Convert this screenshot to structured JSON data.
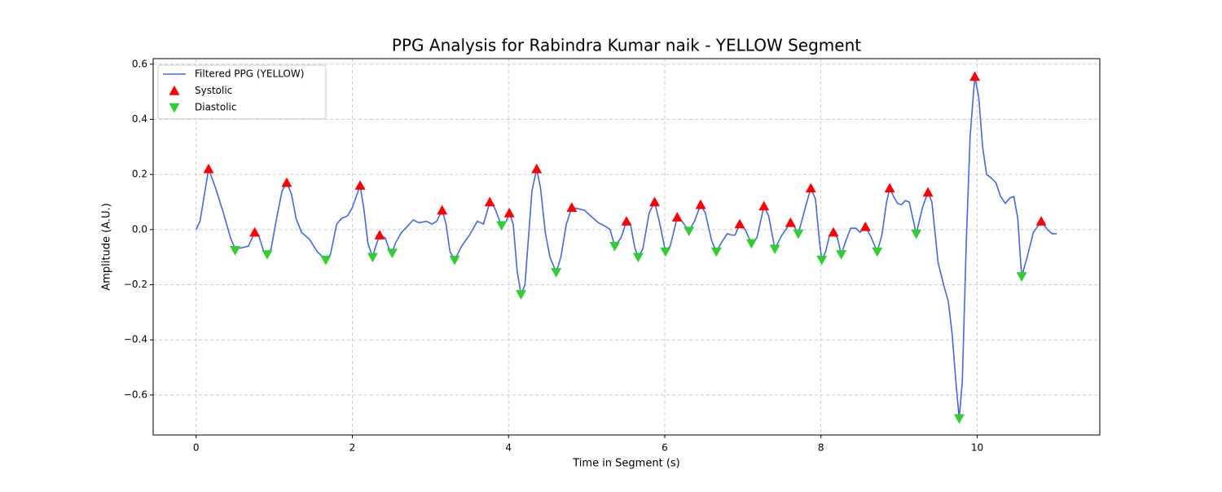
{
  "chart_data": {
    "type": "line",
    "title": "PPG Analysis for Rabindra Kumar naik - YELLOW Segment",
    "xlabel": "Time in Segment (s)",
    "ylabel": "Amplitude (A.U.)",
    "xlim": [
      -0.55,
      11.57
    ],
    "ylim": [
      -0.745,
      0.62
    ],
    "xticks": [
      0,
      2,
      4,
      6,
      8,
      10
    ],
    "yticks": [
      {
        "value": -0.6,
        "label": "−0.6"
      },
      {
        "value": -0.4,
        "label": "−0.4"
      },
      {
        "value": -0.2,
        "label": "−0.2"
      },
      {
        "value": 0,
        "label": "0.0"
      },
      0.2,
      0.4,
      0.6
    ],
    "grid": true,
    "legend": "upper left",
    "series": [
      {
        "name": "Filtered PPG (YELLOW)",
        "kind": "line",
        "color": "#4169e1",
        "x": [
          0,
          0.05,
          0.16,
          0.25,
          0.35,
          0.44,
          0.5,
          0.6,
          0.67,
          0.75,
          0.8,
          0.86,
          0.91,
          0.96,
          1.03,
          1.1,
          1.16,
          1.22,
          1.28,
          1.35,
          1.45,
          1.55,
          1.66,
          1.72,
          1.8,
          1.86,
          1.94,
          2.0,
          2.1,
          2.15,
          2.2,
          2.26,
          2.3,
          2.35,
          2.42,
          2.47,
          2.51,
          2.55,
          2.63,
          2.7,
          2.78,
          2.85,
          2.95,
          3.02,
          3.08,
          3.15,
          3.2,
          3.25,
          3.31,
          3.4,
          3.5,
          3.6,
          3.68,
          3.76,
          3.82,
          3.91,
          3.97,
          4.01,
          4.06,
          4.11,
          4.16,
          4.21,
          4.3,
          4.36,
          4.41,
          4.47,
          4.53,
          4.61,
          4.67,
          4.74,
          4.81,
          4.9,
          4.97,
          5.05,
          5.15,
          5.25,
          5.3,
          5.36,
          5.44,
          5.51,
          5.56,
          5.62,
          5.66,
          5.72,
          5.8,
          5.87,
          5.93,
          6.01,
          6.07,
          6.16,
          6.22,
          6.31,
          6.38,
          6.46,
          6.52,
          6.6,
          6.66,
          6.72,
          6.8,
          6.86,
          6.9,
          6.96,
          7.03,
          7.11,
          7.18,
          7.27,
          7.33,
          7.41,
          7.5,
          7.61,
          7.66,
          7.71,
          7.8,
          7.87,
          7.93,
          7.98,
          8.01,
          8.06,
          8.11,
          8.16,
          8.21,
          8.26,
          8.32,
          8.38,
          8.45,
          8.5,
          8.57,
          8.63,
          8.72,
          8.78,
          8.84,
          8.88,
          8.93,
          8.98,
          9.03,
          9.08,
          9.13,
          9.22,
          9.3,
          9.37,
          9.42,
          9.5,
          9.57,
          9.63,
          9.68,
          9.73,
          9.77,
          9.81,
          9.86,
          9.91,
          9.97,
          10.02,
          10.07,
          10.12,
          10.17,
          10.24,
          10.3,
          10.36,
          10.42,
          10.47,
          10.52,
          10.55,
          10.57,
          10.64,
          10.72,
          10.82,
          10.9,
          10.96,
          11.02
        ],
        "values": [
          0,
          0.03,
          0.22,
          0.15,
          0.06,
          -0.03,
          -0.07,
          -0.065,
          -0.06,
          -0.01,
          -0.02,
          -0.075,
          -0.09,
          -0.07,
          0.04,
          0.14,
          0.17,
          0.13,
          0.04,
          -0.01,
          -0.035,
          -0.08,
          -0.11,
          -0.09,
          0.02,
          0.04,
          0.05,
          0.08,
          0.16,
          0.07,
          -0.05,
          -0.1,
          -0.06,
          -0.02,
          -0.03,
          -0.07,
          -0.085,
          -0.05,
          -0.01,
          0.01,
          0.035,
          0.025,
          0.03,
          0.02,
          0.03,
          0.07,
          0.02,
          -0.08,
          -0.11,
          -0.06,
          -0.02,
          0.03,
          0.02,
          0.1,
          0.08,
          0.015,
          0.03,
          0.06,
          0.02,
          -0.15,
          -0.235,
          -0.2,
          0.14,
          0.22,
          0.15,
          -0.01,
          -0.1,
          -0.155,
          -0.1,
          0.02,
          0.08,
          0.075,
          0.07,
          0.05,
          0.025,
          0.01,
          0.0,
          -0.06,
          -0.03,
          0.03,
          0.02,
          -0.07,
          -0.1,
          -0.07,
          0.06,
          0.1,
          0.03,
          -0.08,
          -0.06,
          0.045,
          0.03,
          -0.005,
          0.03,
          0.09,
          0.06,
          -0.04,
          -0.08,
          -0.05,
          -0.015,
          -0.02,
          -0.02,
          0.02,
          0.0,
          -0.05,
          -0.03,
          0.085,
          0.05,
          -0.07,
          -0.02,
          0.025,
          0.01,
          -0.015,
          0.08,
          0.15,
          0.11,
          -0.04,
          -0.11,
          -0.08,
          -0.02,
          -0.01,
          -0.03,
          -0.09,
          -0.04,
          0.005,
          0.005,
          -0.01,
          0.01,
          -0.02,
          -0.08,
          -0.02,
          0.1,
          0.15,
          0.12,
          0.095,
          0.09,
          0.105,
          0.1,
          -0.015,
          0.08,
          0.135,
          0.1,
          -0.12,
          -0.2,
          -0.26,
          -0.38,
          -0.56,
          -0.685,
          -0.55,
          -0.05,
          0.34,
          0.555,
          0.48,
          0.3,
          0.2,
          0.19,
          0.17,
          0.12,
          0.095,
          0.115,
          0.12,
          0.04,
          -0.09,
          -0.17,
          -0.1,
          -0.01,
          0.03,
          0.0,
          -0.015,
          -0.015
        ]
      },
      {
        "name": "Systolic",
        "kind": "up",
        "color": "#ff0000",
        "x": [
          0.16,
          0.75,
          1.16,
          2.1,
          2.35,
          3.15,
          3.76,
          4.01,
          4.36,
          4.81,
          5.51,
          5.87,
          6.16,
          6.46,
          6.96,
          7.27,
          7.61,
          7.87,
          8.16,
          8.57,
          8.88,
          9.37,
          9.97,
          10.82
        ],
        "values": [
          0.22,
          -0.01,
          0.17,
          0.16,
          -0.02,
          0.07,
          0.1,
          0.06,
          0.22,
          0.08,
          0.03,
          0.1,
          0.045,
          0.09,
          0.02,
          0.085,
          0.025,
          0.15,
          -0.01,
          0.01,
          0.15,
          0.135,
          0.555,
          0.03
        ]
      },
      {
        "name": "Diastolic",
        "kind": "down",
        "color": "#32cd32",
        "x": [
          0.5,
          0.91,
          1.66,
          2.26,
          2.51,
          3.31,
          3.91,
          4.16,
          4.61,
          5.36,
          5.66,
          6.01,
          6.31,
          6.66,
          7.11,
          7.41,
          7.71,
          8.01,
          8.26,
          8.72,
          9.22,
          9.77,
          10.57
        ],
        "values": [
          -0.075,
          -0.09,
          -0.11,
          -0.1,
          -0.085,
          -0.11,
          0.015,
          -0.235,
          -0.155,
          -0.06,
          -0.1,
          -0.08,
          -0.005,
          -0.08,
          -0.05,
          -0.07,
          -0.015,
          -0.11,
          -0.09,
          -0.08,
          -0.015,
          -0.685,
          -0.17
        ]
      }
    ]
  }
}
